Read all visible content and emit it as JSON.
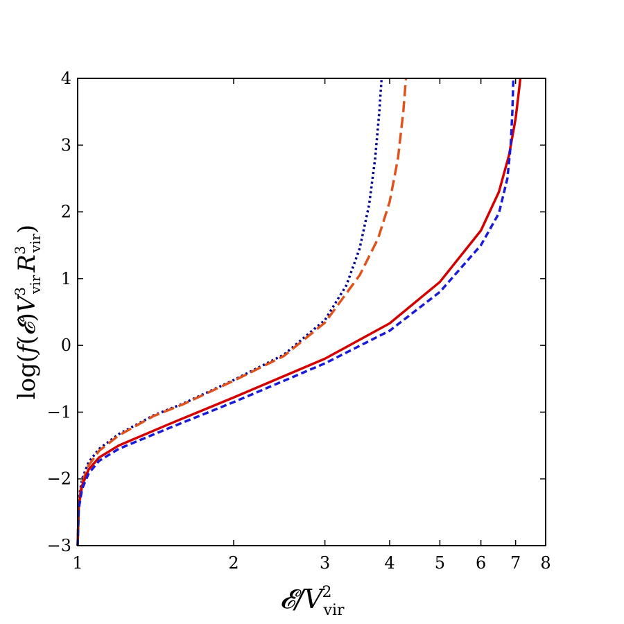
{
  "chart_data": {
    "type": "line",
    "title": "",
    "xlabel": "𝓔/V²vir",
    "ylabel": "log(f(𝓔)V³vir R³vir)",
    "xscale": "log",
    "xlim": [
      1,
      8
    ],
    "ylim": [
      -3,
      4
    ],
    "xticks": [
      1,
      2,
      3,
      4,
      5,
      6,
      7,
      8
    ],
    "xtick_labels": [
      "1",
      "2",
      "3",
      "4",
      "5",
      "6",
      "7",
      "8"
    ],
    "yticks": [
      -3,
      -2,
      -1,
      0,
      1,
      2,
      3,
      4
    ],
    "ytick_labels": [
      "−3",
      "−2",
      "−1",
      "0",
      "1",
      "2",
      "3",
      "4"
    ],
    "grid": false,
    "legend": "none",
    "series": [
      {
        "name": "dotted navy",
        "style": "dotted",
        "color": "#00008b",
        "x": [
          1.0,
          1.005,
          1.02,
          1.05,
          1.1,
          1.2,
          1.4,
          1.6,
          2.0,
          2.5,
          3.0,
          3.3,
          3.5,
          3.65,
          3.75,
          3.82,
          3.86
        ],
        "y": [
          -3.0,
          -2.3,
          -2.0,
          -1.75,
          -1.55,
          -1.33,
          -1.05,
          -0.87,
          -0.52,
          -0.14,
          0.38,
          0.9,
          1.45,
          2.1,
          2.8,
          3.5,
          4.0
        ]
      },
      {
        "name": "dashed orange",
        "style": "long-dash",
        "color": "#e0521c",
        "x": [
          1.0,
          1.005,
          1.02,
          1.05,
          1.1,
          1.2,
          1.4,
          1.6,
          2.0,
          2.5,
          3.0,
          3.5,
          3.8,
          4.0,
          4.15,
          4.25,
          4.3
        ],
        "y": [
          -3.0,
          -2.35,
          -2.05,
          -1.8,
          -1.58,
          -1.35,
          -1.06,
          -0.88,
          -0.53,
          -0.16,
          0.34,
          1.05,
          1.6,
          2.15,
          2.8,
          3.5,
          4.0
        ]
      },
      {
        "name": "solid red",
        "style": "solid",
        "color": "#d40000",
        "x": [
          1.0,
          1.005,
          1.02,
          1.05,
          1.1,
          1.2,
          1.5,
          2.0,
          3.0,
          4.0,
          5.0,
          6.0,
          6.5,
          6.8,
          7.0,
          7.1,
          7.15
        ],
        "y": [
          -3.0,
          -2.4,
          -2.1,
          -1.86,
          -1.68,
          -1.5,
          -1.18,
          -0.78,
          -0.2,
          0.33,
          0.95,
          1.72,
          2.3,
          2.85,
          3.4,
          3.8,
          4.0
        ]
      },
      {
        "name": "dashed blue",
        "style": "short-dash",
        "color": "#1a1adb",
        "x": [
          1.0,
          1.005,
          1.02,
          1.05,
          1.1,
          1.2,
          1.5,
          2.0,
          3.0,
          4.0,
          5.0,
          6.0,
          6.5,
          6.75,
          6.85,
          6.9,
          6.93
        ],
        "y": [
          -3.0,
          -2.45,
          -2.15,
          -1.92,
          -1.73,
          -1.55,
          -1.24,
          -0.85,
          -0.27,
          0.22,
          0.8,
          1.5,
          1.98,
          2.5,
          3.0,
          3.5,
          4.0
        ]
      }
    ]
  }
}
